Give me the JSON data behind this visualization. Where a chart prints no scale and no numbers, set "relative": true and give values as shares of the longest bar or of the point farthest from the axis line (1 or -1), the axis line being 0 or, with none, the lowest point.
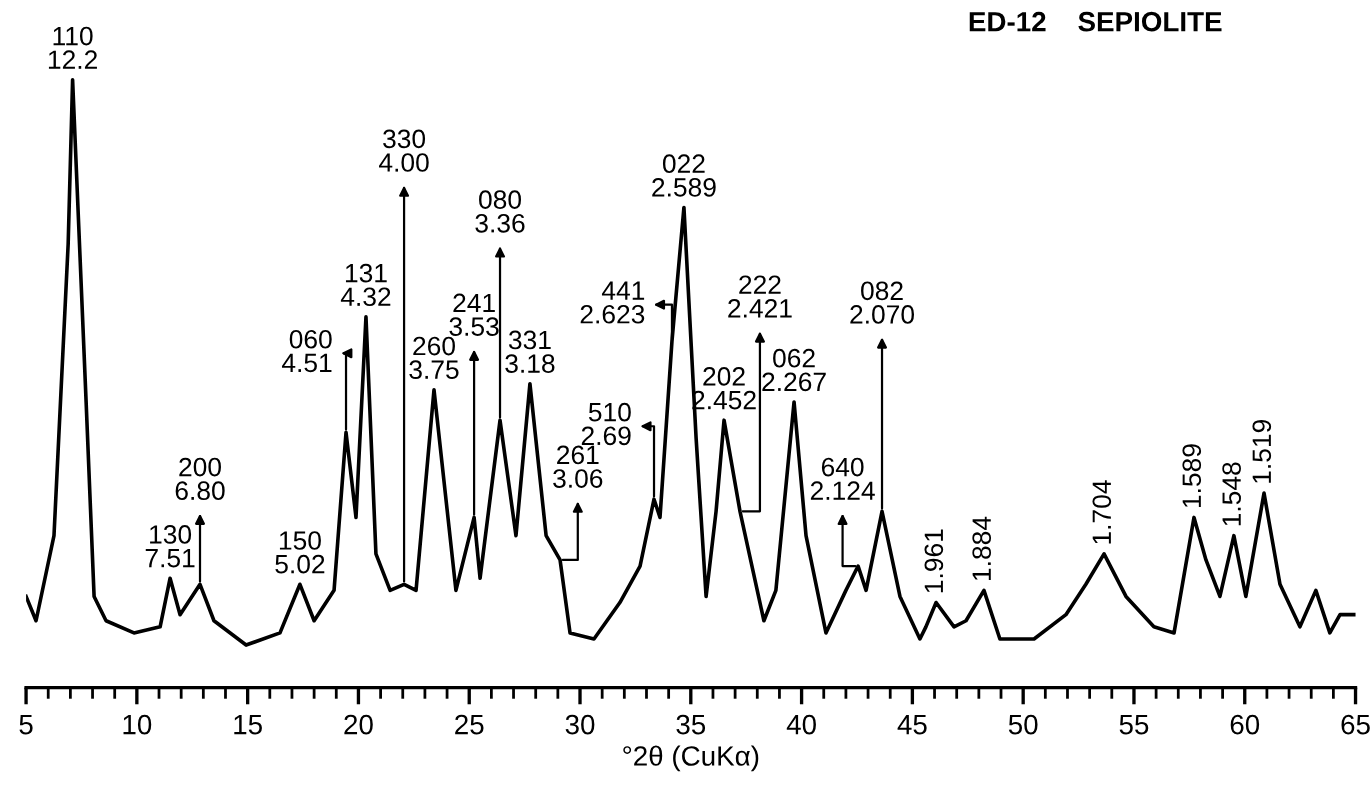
{
  "chart_data": {
    "type": "line",
    "title": "ED-12    SEPIOLITE",
    "xlabel": "°2θ (CuKα)",
    "relative": true,
    "xlim": [
      5,
      65
    ],
    "xticks": [
      5,
      10,
      15,
      20,
      25,
      30,
      35,
      40,
      45,
      50,
      55,
      60,
      65
    ],
    "grid": false,
    "legend": false,
    "marker": "none",
    "line_style": "solid",
    "series": [
      {
        "color": "#000000",
        "x": [
          5.0,
          5.45,
          6.26,
          6.9,
          7.1,
          7.71,
          8.07,
          8.61,
          9.87,
          11.05,
          11.5,
          11.95,
          12.85,
          13.48,
          14.93,
          16.46,
          17.36,
          18.0,
          18.9,
          19.44,
          19.89,
          20.34,
          20.79,
          21.43,
          22.06,
          22.6,
          23.41,
          24.4,
          25.22,
          25.49,
          26.39,
          27.11,
          27.74,
          28.47,
          29.1,
          29.55,
          30.63,
          31.8,
          32.71,
          33.34,
          33.61,
          34.15,
          34.69,
          35.24,
          35.69,
          36.14,
          36.5,
          37.22,
          38.3,
          38.84,
          39.66,
          40.2,
          41.1,
          42.0,
          42.55,
          42.91,
          43.63,
          44.44,
          45.34,
          45.61,
          46.07,
          46.88,
          47.42,
          48.23,
          48.95,
          50.49,
          51.93,
          52.83,
          53.65,
          54.64,
          55.9,
          56.81,
          57.71,
          58.25,
          58.88,
          59.51,
          60.05,
          60.87,
          61.59,
          62.49,
          63.21,
          63.84,
          64.3,
          65.0
        ],
        "values": [
          0.15,
          0.11,
          0.25,
          0.73,
          1.0,
          0.47,
          0.15,
          0.11,
          0.09,
          0.1,
          0.18,
          0.12,
          0.17,
          0.11,
          0.07,
          0.09,
          0.17,
          0.11,
          0.16,
          0.42,
          0.28,
          0.61,
          0.22,
          0.16,
          0.17,
          0.16,
          0.49,
          0.16,
          0.28,
          0.18,
          0.44,
          0.25,
          0.5,
          0.25,
          0.21,
          0.09,
          0.08,
          0.14,
          0.2,
          0.31,
          0.28,
          0.57,
          0.79,
          0.41,
          0.15,
          0.29,
          0.44,
          0.29,
          0.11,
          0.16,
          0.47,
          0.25,
          0.09,
          0.16,
          0.2,
          0.16,
          0.29,
          0.15,
          0.08,
          0.1,
          0.14,
          0.1,
          0.11,
          0.16,
          0.08,
          0.08,
          0.12,
          0.17,
          0.22,
          0.15,
          0.1,
          0.09,
          0.28,
          0.21,
          0.15,
          0.25,
          0.15,
          0.32,
          0.17,
          0.1,
          0.16,
          0.09,
          0.12,
          0.12
        ]
      }
    ],
    "annotations": [
      {
        "text": "110\n12.2",
        "x": 7.1,
        "y": 1.0
      },
      {
        "text": "130\n7.51",
        "x": 11.5,
        "y": 0.18
      },
      {
        "text": "200\n6.80",
        "x": 12.85,
        "y": 0.17
      },
      {
        "text": "150\n5.02",
        "x": 17.36,
        "y": 0.17
      },
      {
        "text": "060\n4.51",
        "x": 19.44,
        "y": 0.42
      },
      {
        "text": "131\n4.32",
        "x": 20.34,
        "y": 0.61
      },
      {
        "text": "330\n4.00",
        "x": 22.06,
        "y": 0.17
      },
      {
        "text": "260\n3.75",
        "x": 23.41,
        "y": 0.49
      },
      {
        "text": "241\n3.53",
        "x": 25.22,
        "y": 0.28
      },
      {
        "text": "080\n3.36",
        "x": 26.39,
        "y": 0.44
      },
      {
        "text": "331\n3.18",
        "x": 27.74,
        "y": 0.5
      },
      {
        "text": "261\n3.06",
        "x": 29.1,
        "y": 0.21
      },
      {
        "text": "510\n2.69",
        "x": 33.34,
        "y": 0.31
      },
      {
        "text": "441\n2.623",
        "x": 34.15,
        "y": 0.57
      },
      {
        "text": "022\n2.589",
        "x": 34.69,
        "y": 0.79
      },
      {
        "text": "202\n2.452",
        "x": 36.5,
        "y": 0.44
      },
      {
        "text": "222\n2.421",
        "x": 37.22,
        "y": 0.29
      },
      {
        "text": "062\n2.267",
        "x": 39.66,
        "y": 0.47
      },
      {
        "text": "640\n2.124",
        "x": 42.55,
        "y": 0.2
      },
      {
        "text": "082\n2.070",
        "x": 43.63,
        "y": 0.29
      },
      {
        "text": "1.961",
        "x": 46.07,
        "y": 0.14
      },
      {
        "text": "1.884",
        "x": 48.23,
        "y": 0.16
      },
      {
        "text": "1.704",
        "x": 53.65,
        "y": 0.22
      },
      {
        "text": "1.589",
        "x": 57.71,
        "y": 0.28
      },
      {
        "text": "1.548",
        "x": 59.51,
        "y": 0.25
      },
      {
        "text": "1.519",
        "x": 60.87,
        "y": 0.32
      }
    ]
  }
}
